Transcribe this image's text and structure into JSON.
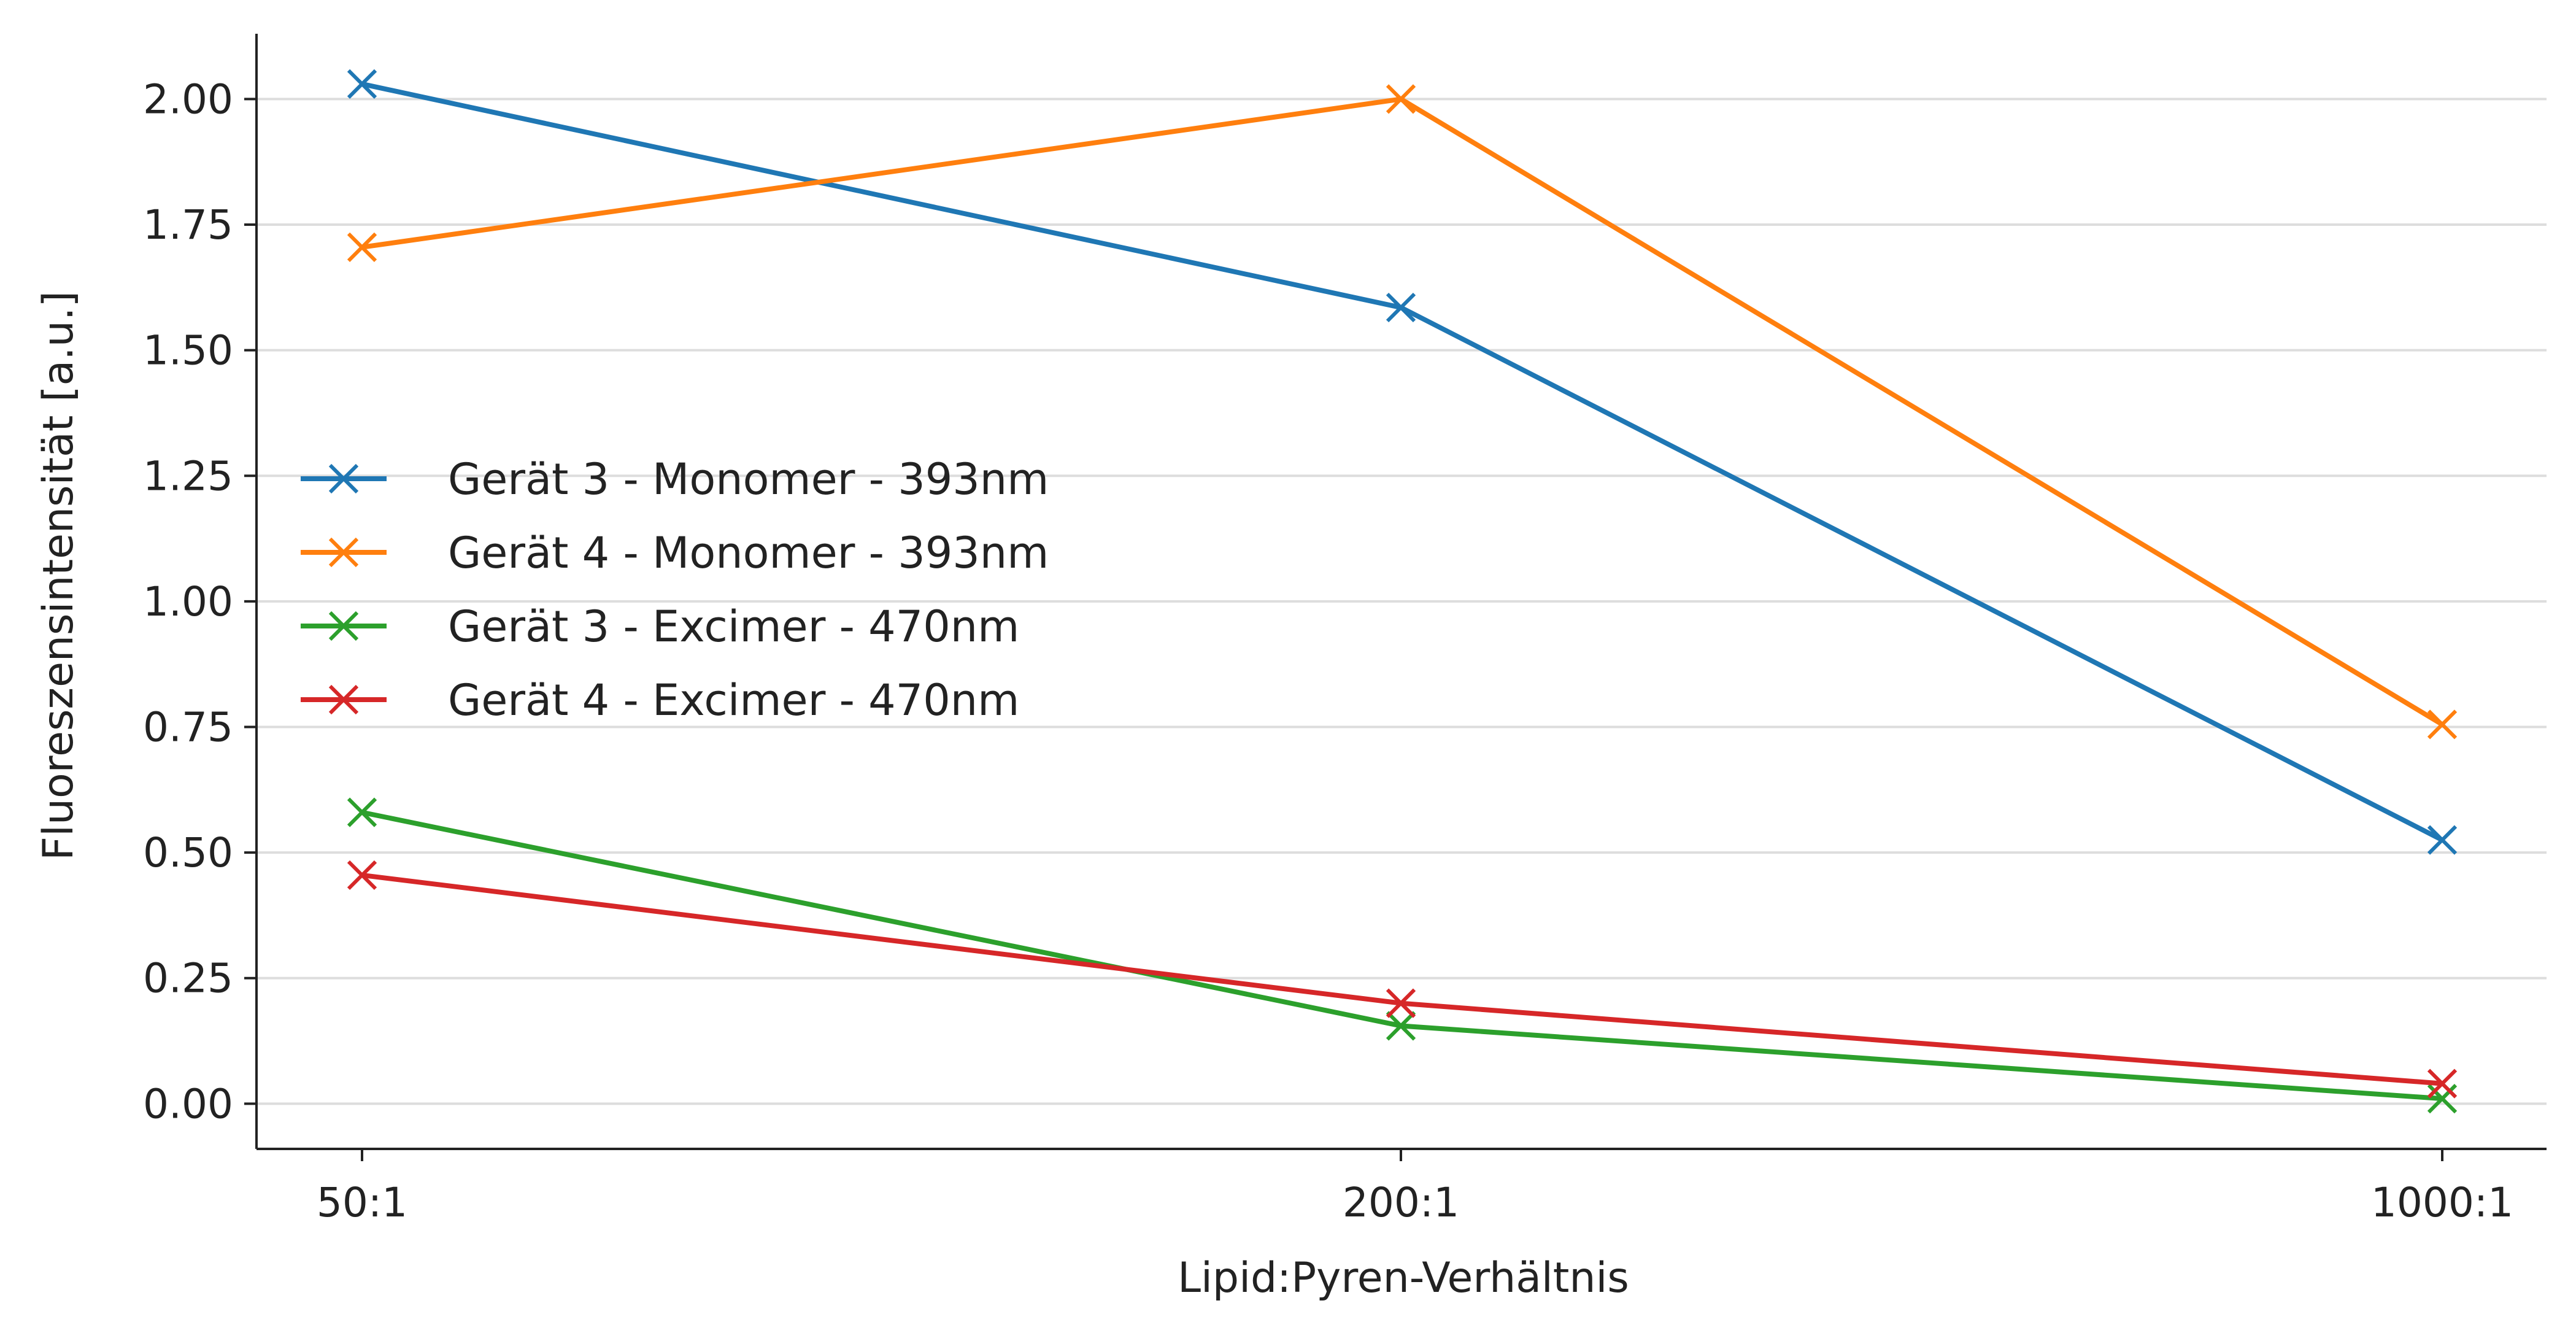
{
  "chart_data": {
    "type": "line",
    "title": "",
    "xlabel": "Lipid:Pyren-Verhältnis",
    "ylabel": "Fluoreszensintensität [a.u.]",
    "categories": [
      "50:1",
      "200:1",
      "1000:1"
    ],
    "ylim": [
      -0.09,
      2.13
    ],
    "yticks": [
      "0.00",
      "0.25",
      "0.50",
      "0.75",
      "1.00",
      "1.25",
      "1.50",
      "1.75",
      "2.00"
    ],
    "grid": "horizontal",
    "legend_position": "center-left",
    "marker": "x",
    "series": [
      {
        "name": "Gerät 3 - Monomer - 393nm",
        "color": "#1f77b4",
        "values": [
          2.03,
          1.585,
          0.525
        ]
      },
      {
        "name": "Gerät 4 - Monomer - 393nm",
        "color": "#ff7f0e",
        "values": [
          1.705,
          2.0,
          0.755
        ]
      },
      {
        "name": "Gerät 3 - Excimer - 470nm",
        "color": "#2ca02c",
        "values": [
          0.58,
          0.155,
          0.01
        ]
      },
      {
        "name": "Gerät 4 - Excimer - 470nm",
        "color": "#d62728",
        "values": [
          0.455,
          0.2,
          0.04
        ]
      }
    ]
  }
}
